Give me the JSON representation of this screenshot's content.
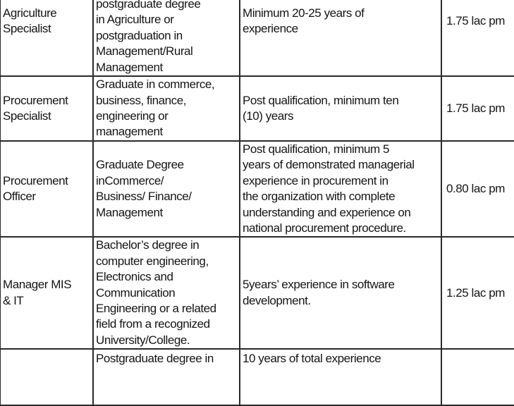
{
  "table": {
    "rows": [
      {
        "position": [
          "Agriculture",
          "Specialist"
        ],
        "qualification": [
          "postgraduate degree",
          "in Agriculture or",
          "postgraduation in",
          "Management/Rural",
          "Management"
        ],
        "experience": [
          "Minimum 20-25 years of",
          "experience"
        ],
        "salary": "1.75 lac pm"
      },
      {
        "position": [
          "Procurement",
          "Specialist"
        ],
        "qualification": [
          "Graduate in commerce,",
          "business, finance,",
          "engineering or",
          "management"
        ],
        "experience": [
          "Post qualification, minimum ten",
          "(10) years"
        ],
        "salary": "1.75 lac pm"
      },
      {
        "position": [
          "Procurement",
          "Officer"
        ],
        "qualification": [
          "Graduate Degree",
          "inCommerce/",
          "Business/ Finance/",
          "Management"
        ],
        "experience": [
          "Post qualification, minimum 5",
          "years of demonstrated managerial",
          "experience in procurement in",
          "the organization with complete",
          "understanding and experience on",
          "national procurement procedure."
        ],
        "salary": "0.80 lac pm"
      },
      {
        "position": [
          "Manager MIS",
          "& IT"
        ],
        "qualification": [
          "Bachelor’s degree in",
          "computer engineering,",
          "Electronics and",
          "Communication",
          "Engineering or a related",
          "field from a recognized",
          "University/College."
        ],
        "experience": [
          "5years’ experience in software",
          "development."
        ],
        "salary": "1.25 lac pm"
      },
      {
        "position": [],
        "qualification": [
          "Postgraduate degree in"
        ],
        "experience": [
          "10 years of total experience"
        ],
        "salary": ""
      }
    ]
  }
}
